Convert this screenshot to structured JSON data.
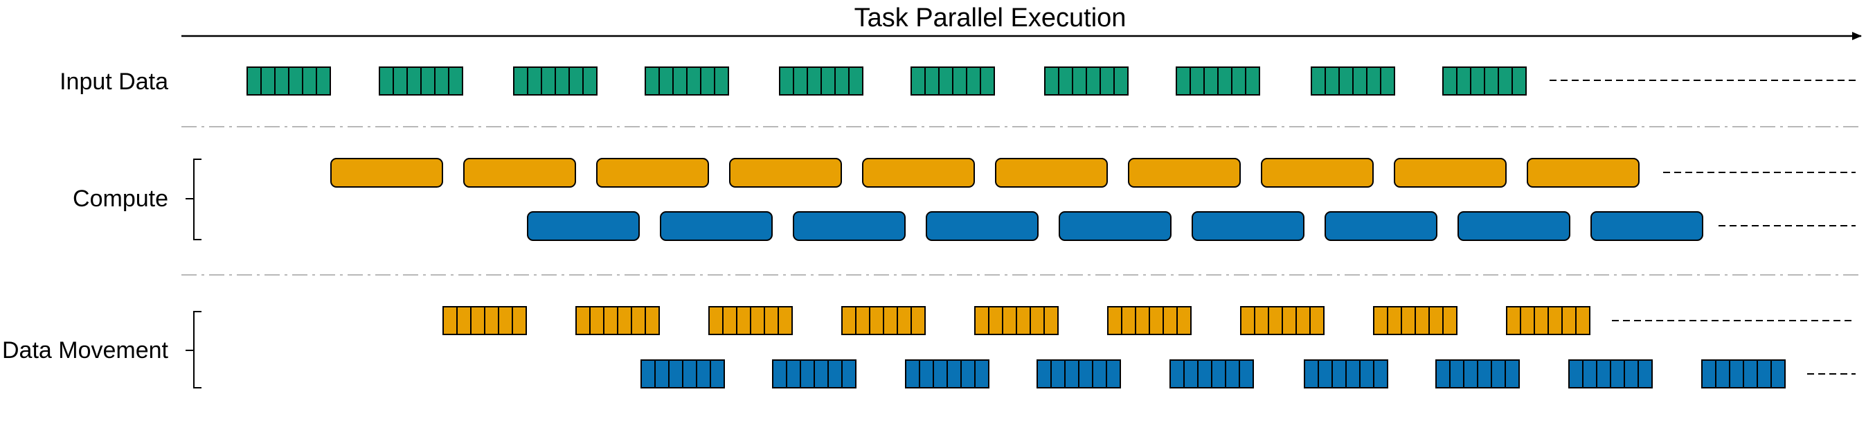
{
  "title": "Task Parallel Execution",
  "colors": {
    "green": "#139c77",
    "orange": "#e8a003",
    "blue": "#0972b4",
    "border": "#000000",
    "separator": "#b8b8b8"
  },
  "rows": {
    "input_data": "Input Data",
    "compute": "Compute",
    "data_movement": "Data Movement"
  },
  "series": {
    "input_data": {
      "color": "green",
      "style": "segmented",
      "count": 10
    },
    "compute_orange": {
      "color": "orange",
      "style": "rounded",
      "count": 10
    },
    "compute_blue": {
      "color": "blue",
      "style": "rounded",
      "count": 9
    },
    "movement_orange": {
      "color": "orange",
      "style": "segmented",
      "count": 9
    },
    "movement_blue": {
      "color": "blue",
      "style": "segmented",
      "count": 9
    }
  }
}
